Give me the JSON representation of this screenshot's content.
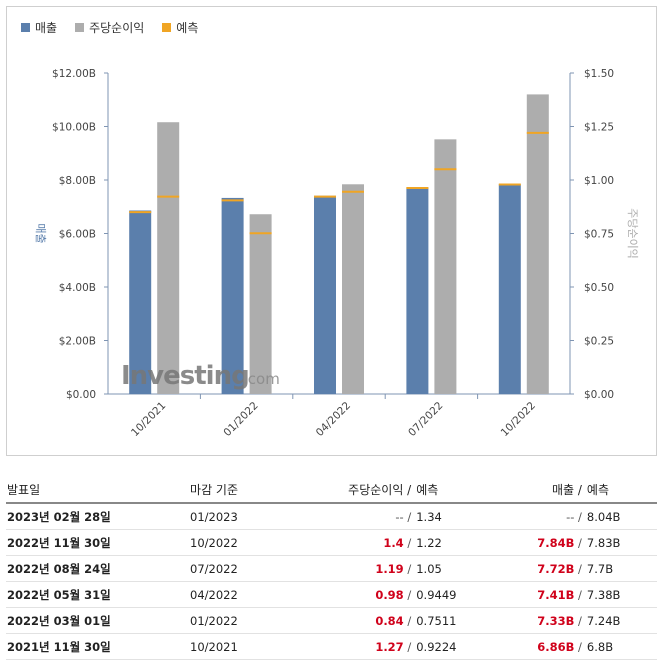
{
  "legend": [
    {
      "label": "매출",
      "color": "#5b7fac"
    },
    {
      "label": "주당순이익",
      "color": "#adadad"
    },
    {
      "label": "예측",
      "color": "#f0a524"
    }
  ],
  "watermark": "Investing.com",
  "chart_data": {
    "type": "bar",
    "categories": [
      "10/2021",
      "01/2022",
      "04/2022",
      "07/2022",
      "10/2022"
    ],
    "series": [
      {
        "name": "매출",
        "axis": "left",
        "values": [
          6.86,
          7.33,
          7.41,
          7.72,
          7.84
        ],
        "forecast": [
          6.8,
          7.24,
          7.38,
          7.7,
          7.83
        ],
        "color": "#5b7fac"
      },
      {
        "name": "주당순이익",
        "axis": "right",
        "values": [
          1.27,
          0.84,
          0.98,
          1.19,
          1.4
        ],
        "forecast": [
          0.9224,
          0.7511,
          0.9449,
          1.05,
          1.22
        ],
        "color": "#adadad"
      }
    ],
    "forecast_color": "#f0a524",
    "ylabel": "매출",
    "y2label": "주당순이익",
    "ylim": [
      0,
      12
    ],
    "y2lim": [
      0,
      1.5
    ],
    "yticks": [
      "$0.00",
      "$2.00B",
      "$4.00B",
      "$6.00B",
      "$8.00B",
      "$10.00B",
      "$12.00B"
    ],
    "y2ticks": [
      "$0.00",
      "$0.25",
      "$0.50",
      "$0.75",
      "$1.00",
      "$1.25",
      "$1.50"
    ]
  },
  "table": {
    "headers": {
      "date": "발표일",
      "period": "마감 기준",
      "eps": "주당순이익",
      "eps_sep": " / ",
      "eps_forecast": "예측",
      "revenue": "매출",
      "rev_sep": " / ",
      "rev_forecast": "예측"
    },
    "rows": [
      {
        "date": "2023년 02월 28일",
        "period": "01/2023",
        "eps": "--",
        "eps_forecast": "1.34",
        "revenue": "--",
        "rev_forecast": "8.04B",
        "highlight": false
      },
      {
        "date": "2022년 11월 30일",
        "period": "10/2022",
        "eps": "1.4",
        "eps_forecast": "1.22",
        "revenue": "7.84B",
        "rev_forecast": "7.83B",
        "highlight": true
      },
      {
        "date": "2022년 08월 24일",
        "period": "07/2022",
        "eps": "1.19",
        "eps_forecast": "1.05",
        "revenue": "7.72B",
        "rev_forecast": "7.7B",
        "highlight": true
      },
      {
        "date": "2022년 05월 31일",
        "period": "04/2022",
        "eps": "0.98",
        "eps_forecast": "0.9449",
        "revenue": "7.41B",
        "rev_forecast": "7.38B",
        "highlight": true
      },
      {
        "date": "2022년 03월 01일",
        "period": "01/2022",
        "eps": "0.84",
        "eps_forecast": "0.7511",
        "revenue": "7.33B",
        "rev_forecast": "7.24B",
        "highlight": true
      },
      {
        "date": "2021년 11월 30일",
        "period": "10/2021",
        "eps": "1.27",
        "eps_forecast": "0.9224",
        "revenue": "6.86B",
        "rev_forecast": "6.8B",
        "highlight": true
      }
    ]
  }
}
